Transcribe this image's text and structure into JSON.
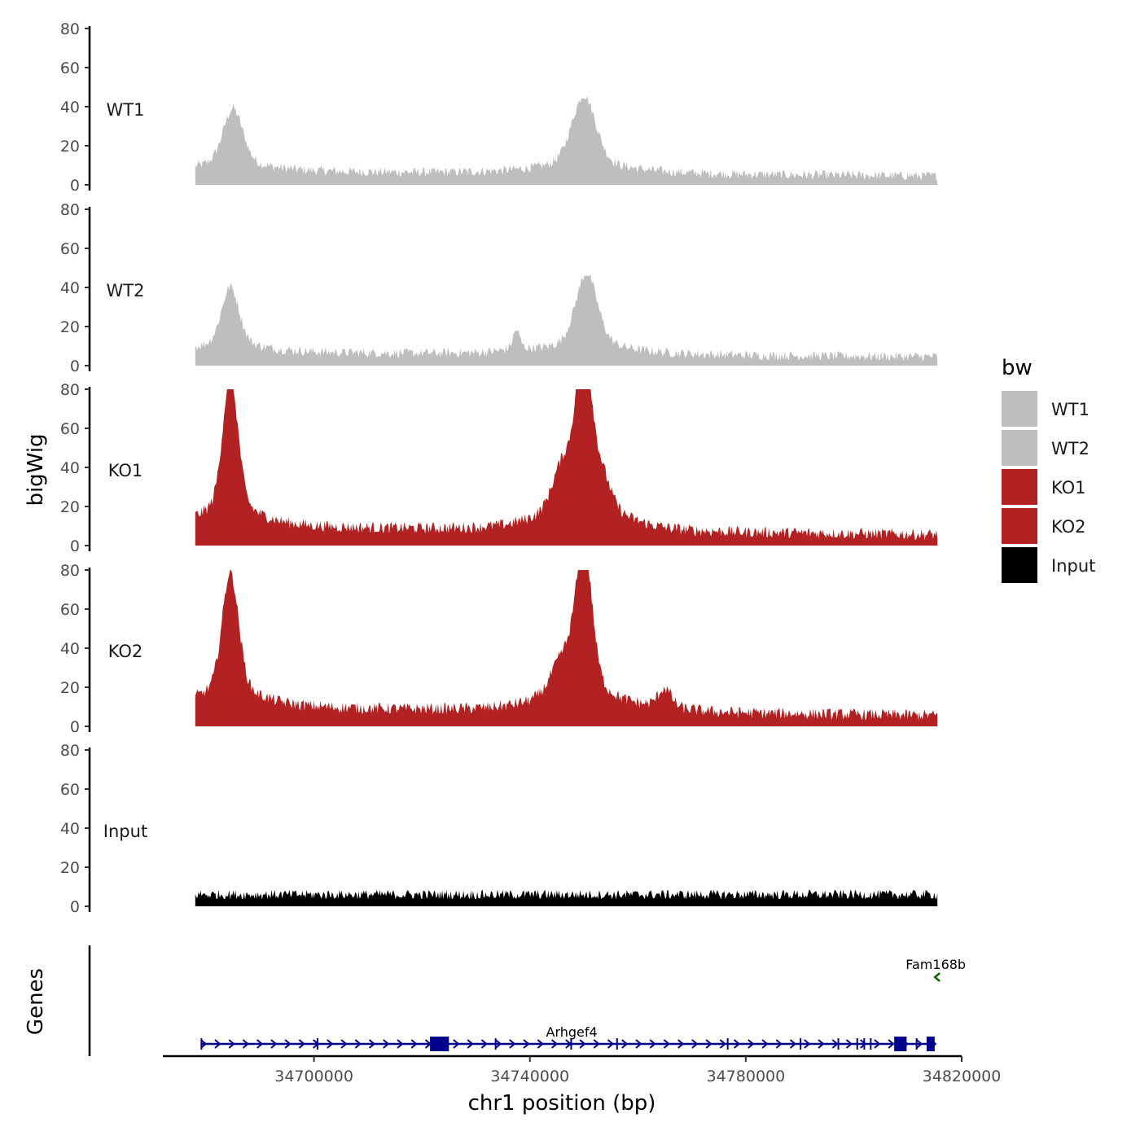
{
  "chart_data": {
    "type": "area",
    "genomic_range": [
      34678000,
      34815500
    ],
    "xlim": [
      34672000,
      34820000
    ],
    "x_ticks": [
      "34700000",
      "34740000",
      "34780000",
      "34820000"
    ],
    "x_tick_values": [
      34700000,
      34740000,
      34780000,
      34820000
    ],
    "xlabel": "chr1 position (bp)",
    "ylabel": "bigWig",
    "ylim": [
      0,
      80
    ],
    "y_ticks": [
      "0",
      "20",
      "40",
      "60",
      "80"
    ],
    "legend_title": "bw",
    "legend": [
      {
        "label": "WT1",
        "color": "#bebebe"
      },
      {
        "label": "WT2",
        "color": "#bebebe"
      },
      {
        "label": "KO1",
        "color": "#b22222"
      },
      {
        "label": "KO2",
        "color": "#b22222"
      },
      {
        "label": "Input",
        "color": "#000000"
      }
    ],
    "series": [
      {
        "name": "WT1",
        "color": "#bebebe",
        "baseline": 6,
        "peaks": [
          {
            "center": 34685000,
            "height": 24,
            "width": 1800
          },
          {
            "center": 34750000,
            "height": 30,
            "width": 2200
          }
        ],
        "noise": 5,
        "tail_decay": 0.4
      },
      {
        "name": "WT2",
        "color": "#bebebe",
        "baseline": 6,
        "peaks": [
          {
            "center": 34684500,
            "height": 25,
            "width": 1600
          },
          {
            "center": 34750500,
            "height": 31,
            "width": 2000
          },
          {
            "center": 34737500,
            "height": 8,
            "width": 600
          }
        ],
        "noise": 5,
        "tail_decay": 0.4
      },
      {
        "name": "KO1",
        "color": "#b22222",
        "baseline": 9,
        "peaks": [
          {
            "center": 34684500,
            "height": 58,
            "width": 1400
          },
          {
            "center": 34750000,
            "height": 66,
            "width": 1500
          },
          {
            "center": 34746000,
            "height": 18,
            "width": 1800
          },
          {
            "center": 34753500,
            "height": 12,
            "width": 1500
          }
        ],
        "noise": 6,
        "tail_decay": 0.5
      },
      {
        "name": "KO2",
        "color": "#b22222",
        "baseline": 9,
        "peaks": [
          {
            "center": 34684500,
            "height": 52,
            "width": 1500
          },
          {
            "center": 34750000,
            "height": 62,
            "width": 1500
          },
          {
            "center": 34746000,
            "height": 14,
            "width": 2000
          },
          {
            "center": 34765000,
            "height": 8,
            "width": 1200
          }
        ],
        "noise": 6,
        "tail_decay": 0.5
      },
      {
        "name": "Input",
        "color": "#000000",
        "baseline": 5,
        "peaks": [],
        "noise": 5,
        "tail_decay": 0
      }
    ],
    "genes_track_label": "Genes",
    "genes": [
      {
        "name": "Arhgef4",
        "start": 34679000,
        "end": 34815000,
        "strand": "+",
        "color": "#00008b",
        "exons": [
          [
            34679000,
            34679300
          ],
          [
            34700500,
            34700800
          ],
          [
            34721500,
            34725000
          ],
          [
            34733500,
            34733800
          ],
          [
            34747500,
            34747700
          ],
          [
            34756000,
            34756300
          ],
          [
            34776500,
            34776800
          ],
          [
            34790000,
            34790300
          ],
          [
            34797000,
            34797300
          ],
          [
            34800500,
            34800700
          ],
          [
            34801800,
            34802000
          ],
          [
            34803000,
            34803300
          ],
          [
            34807500,
            34809800
          ],
          [
            34811500,
            34811700
          ],
          [
            34813500,
            34815000
          ]
        ]
      },
      {
        "name": "Fam168b",
        "start": 34815200,
        "end": 34815800,
        "strand": "-",
        "color": "#006400",
        "exons": []
      }
    ]
  }
}
